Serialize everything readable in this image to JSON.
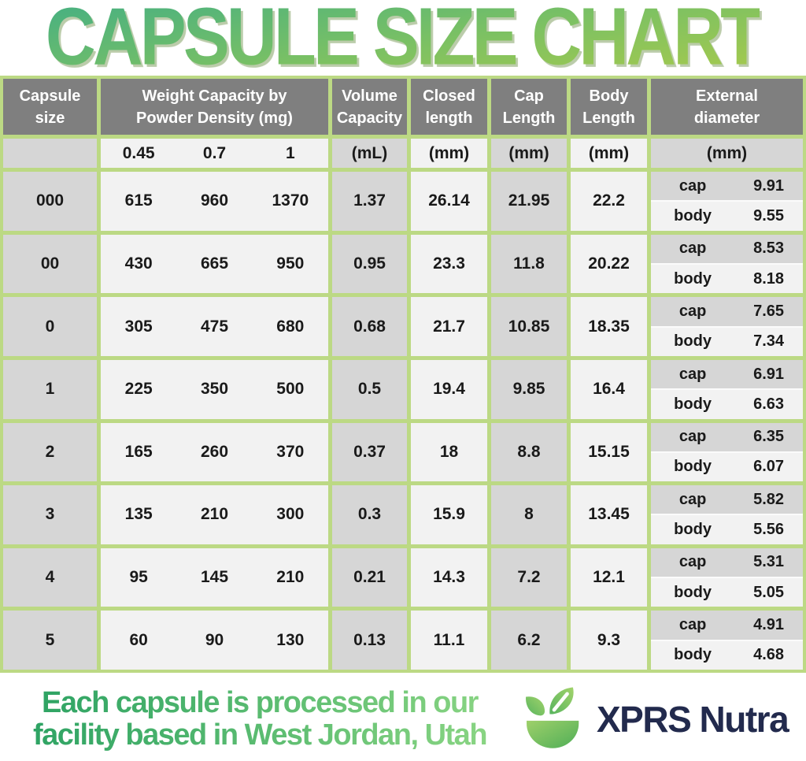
{
  "title": "CAPSULE SIZE CHART",
  "table": {
    "headers": {
      "capsule_size": "Capsule size",
      "weight_l1": "Weight Capacity by",
      "weight_l2": "Powder Density (mg)",
      "volume_l1": "Volume",
      "volume_l2": "Capacity",
      "closed_l1": "Closed",
      "closed_l2": "length",
      "cap_l1": "Cap",
      "cap_l2": "Length",
      "body_l1": "Body",
      "body_l2": "Length",
      "ext_l1": "External",
      "ext_l2": "diameter"
    },
    "units": {
      "densities": [
        "0.45",
        "0.7",
        "1"
      ],
      "volume": "(mL)",
      "closed": "(mm)",
      "cap": "(mm)",
      "body": "(mm)",
      "external": "(mm)"
    },
    "ext_row_labels": {
      "cap": "cap",
      "body": "body"
    }
  },
  "chart_data": {
    "type": "table",
    "title": "CAPSULE SIZE CHART",
    "columns": [
      "Capsule size",
      "Weight Capacity by Powder Density (mg) @ 0.45",
      "Weight Capacity by Powder Density (mg) @ 0.7",
      "Weight Capacity by Powder Density (mg) @ 1",
      "Volume Capacity (mL)",
      "Closed length (mm)",
      "Cap Length (mm)",
      "Body Length (mm)",
      "External diameter cap (mm)",
      "External diameter body (mm)"
    ],
    "rows": [
      {
        "size": "000",
        "weights": [
          615,
          960,
          1370
        ],
        "volume": 1.37,
        "closed": 26.14,
        "cap_length": 21.95,
        "body_length": 22.2,
        "external_cap": 9.91,
        "external_body": 9.55
      },
      {
        "size": "00",
        "weights": [
          430,
          665,
          950
        ],
        "volume": 0.95,
        "closed": 23.3,
        "cap_length": 11.8,
        "body_length": 20.22,
        "external_cap": 8.53,
        "external_body": 8.18
      },
      {
        "size": "0",
        "weights": [
          305,
          475,
          680
        ],
        "volume": 0.68,
        "closed": 21.7,
        "cap_length": 10.85,
        "body_length": 18.35,
        "external_cap": 7.65,
        "external_body": 7.34
      },
      {
        "size": "1",
        "weights": [
          225,
          350,
          500
        ],
        "volume": 0.5,
        "closed": 19.4,
        "cap_length": 9.85,
        "body_length": 16.4,
        "external_cap": 6.91,
        "external_body": 6.63
      },
      {
        "size": "2",
        "weights": [
          165,
          260,
          370
        ],
        "volume": 0.37,
        "closed": 18,
        "cap_length": 8.8,
        "body_length": 15.15,
        "external_cap": 6.35,
        "external_body": 6.07
      },
      {
        "size": "3",
        "weights": [
          135,
          210,
          300
        ],
        "volume": 0.3,
        "closed": 15.9,
        "cap_length": 8,
        "body_length": 13.45,
        "external_cap": 5.82,
        "external_body": 5.56
      },
      {
        "size": "4",
        "weights": [
          95,
          145,
          210
        ],
        "volume": 0.21,
        "closed": 14.3,
        "cap_length": 7.2,
        "body_length": 12.1,
        "external_cap": 5.31,
        "external_body": 5.05
      },
      {
        "size": "5",
        "weights": [
          60,
          90,
          130
        ],
        "volume": 0.13,
        "closed": 11.1,
        "cap_length": 6.2,
        "body_length": 9.3,
        "external_cap": 4.91,
        "external_body": 4.68
      }
    ]
  },
  "footer": {
    "tagline_line1": "Each capsule is processed in our",
    "tagline_line2": "facility based in West Jordan, Utah",
    "brand": "XPRS Nutra"
  },
  "colors": {
    "grid_green": "#bcd984",
    "header_gray": "#7f7f7f",
    "cell_gray": "#d6d6d6",
    "cell_light": "#f2f2f2",
    "title_gradient_start": "#4db27e",
    "title_gradient_end": "#a7ca4c",
    "tagline_gradient_start": "#2ca263",
    "tagline_gradient_end": "#8ad583",
    "brand_navy": "#222a4d"
  }
}
